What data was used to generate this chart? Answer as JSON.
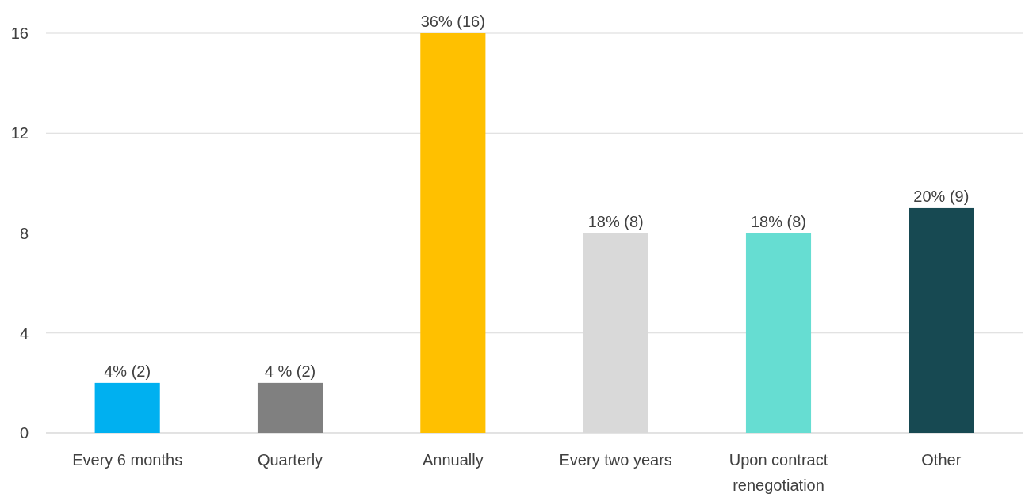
{
  "chart_data": {
    "type": "bar",
    "categories": [
      "Every 6 months",
      "Quarterly",
      "Annually",
      "Every two years",
      "Upon contract renegotiation",
      "Other"
    ],
    "values": [
      2,
      2,
      16,
      8,
      8,
      9
    ],
    "colors": [
      "#00b0f0",
      "#808080",
      "#ffc000",
      "#d9d9d9",
      "#66ddd2",
      "#174952"
    ],
    "value_labels": [
      "4% (2)",
      "4 % (2)",
      "36% (16)",
      "18% (8)",
      "18% (8)",
      "20% (9)"
    ],
    "ylim": [
      0,
      16
    ],
    "yticks": [
      0,
      4,
      8,
      12,
      16
    ],
    "grid": "y"
  }
}
